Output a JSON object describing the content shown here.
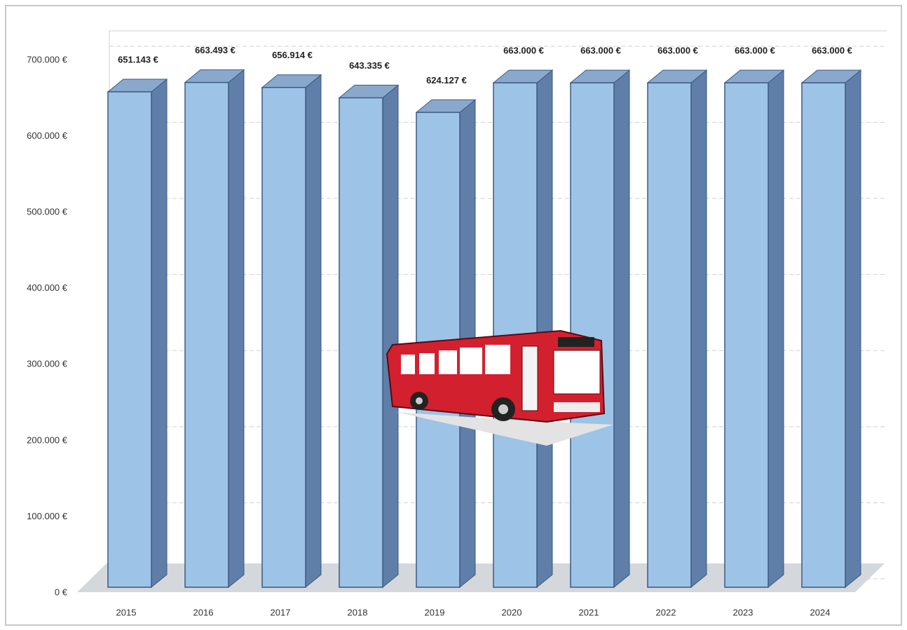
{
  "chart_data": {
    "type": "bar3d",
    "categories": [
      "2015",
      "2016",
      "2017",
      "2018",
      "2019",
      "2020",
      "2021",
      "2022",
      "2023",
      "2024"
    ],
    "values": [
      651143,
      663493,
      656914,
      643335,
      624127,
      663000,
      663000,
      663000,
      663000,
      663000
    ],
    "value_labels": [
      "651.143 €",
      "663.493 €",
      "656.914 €",
      "643.335 €",
      "624.127 €",
      "663.000 €",
      "663.000 €",
      "663.000 €",
      "663.000 €",
      "663.000 €"
    ],
    "color": "#9dc3e6",
    "ylim": [
      0,
      700000
    ],
    "yticks": [
      {
        "value": 0,
        "label": "0 €"
      },
      {
        "value": 100000,
        "label": "100.000 €"
      },
      {
        "value": 200000,
        "label": "200.000 €"
      },
      {
        "value": 300000,
        "label": "300.000 €"
      },
      {
        "value": 400000,
        "label": "400.000 €"
      },
      {
        "value": 500000,
        "label": "500.000 €"
      },
      {
        "value": 600000,
        "label": "600.000 €"
      },
      {
        "value": 700000,
        "label": "700.000 €"
      }
    ],
    "grid": true
  }
}
